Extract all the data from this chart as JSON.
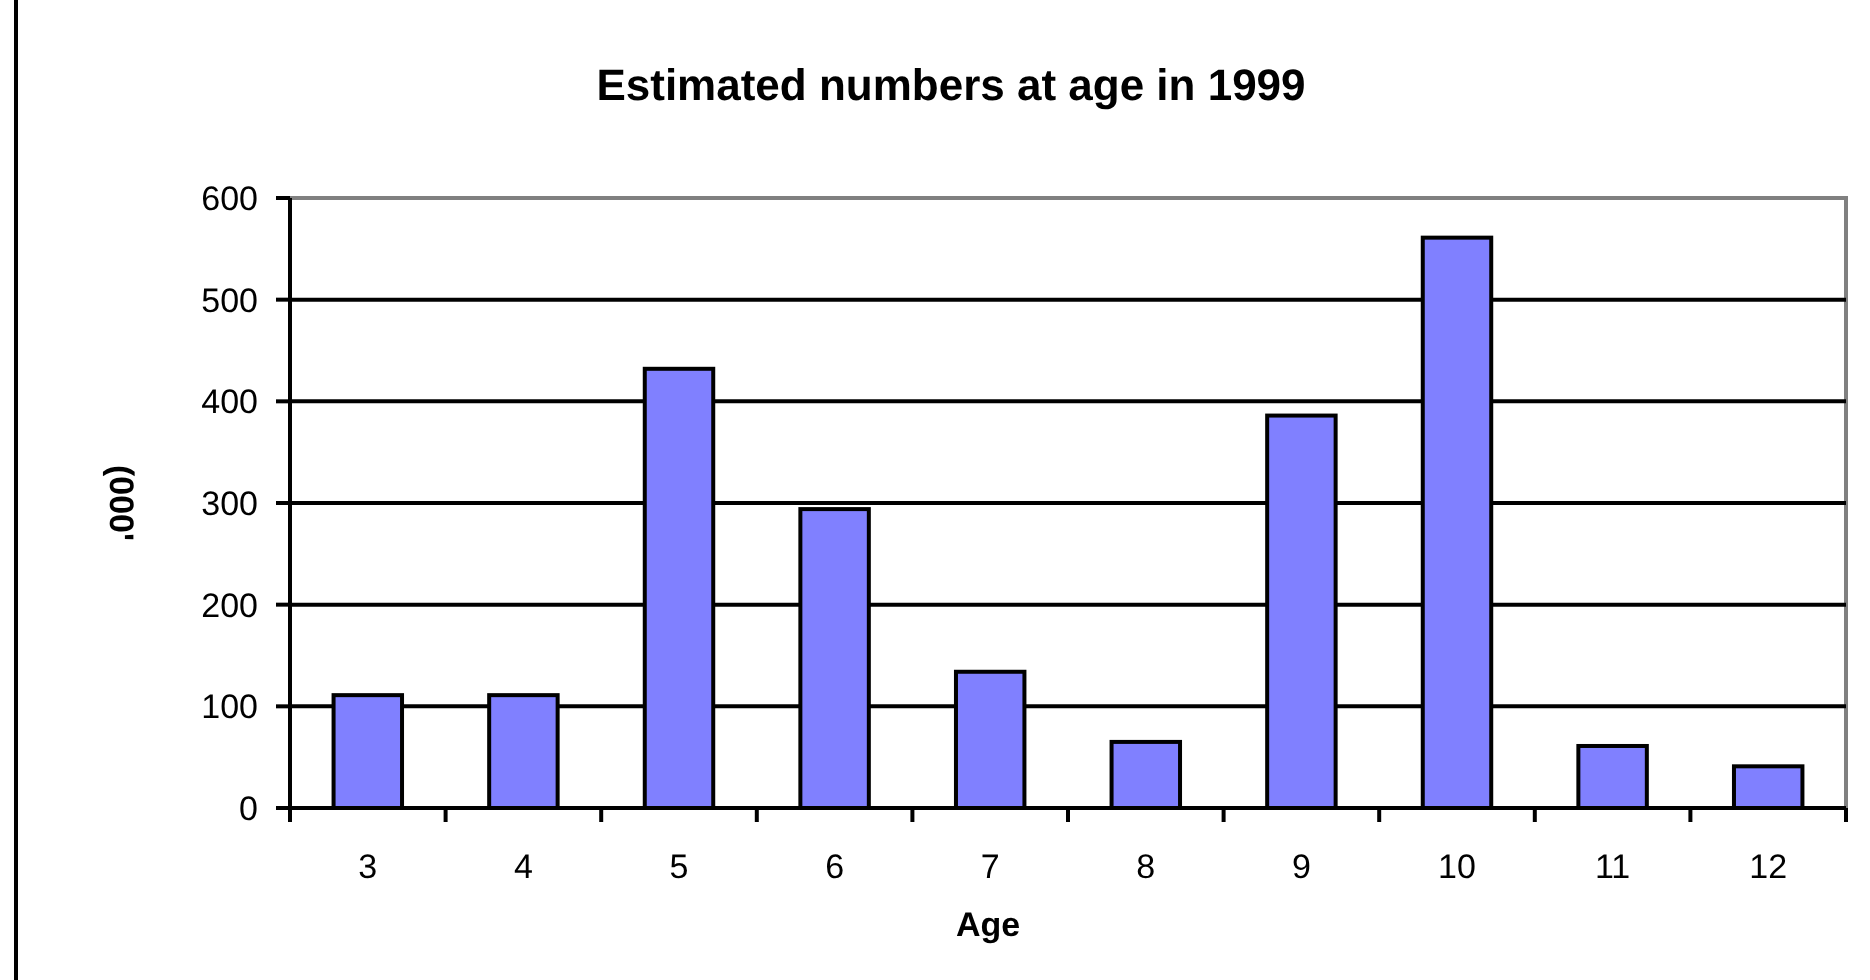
{
  "chart_data": {
    "type": "bar",
    "title": "Estimated numbers at age in 1999",
    "xlabel": "Age",
    "ylabel": "(000'",
    "categories": [
      "3",
      "4",
      "5",
      "6",
      "7",
      "8",
      "9",
      "10",
      "11",
      "12"
    ],
    "values": [
      111,
      111,
      432,
      294,
      134,
      65,
      386,
      561,
      61,
      41
    ],
    "color": "#8080ff",
    "ylim": [
      0,
      600
    ],
    "yticks": [
      0,
      100,
      200,
      300,
      400,
      500,
      600
    ],
    "grid": "y"
  }
}
